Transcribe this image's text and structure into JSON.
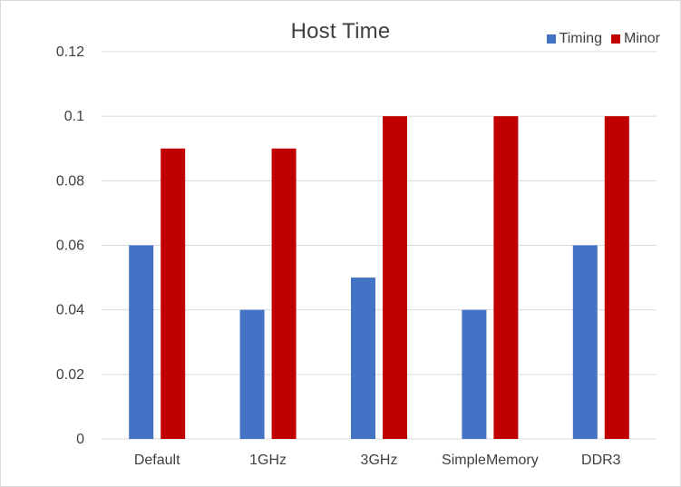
{
  "chart_data": {
    "type": "bar",
    "title": "Host Time",
    "categories": [
      "Default",
      "1GHz",
      "3GHz",
      "SimpleMemory",
      "DDR3"
    ],
    "series": [
      {
        "name": "Timing",
        "values": [
          0.06,
          0.04,
          0.05,
          0.04,
          0.06
        ],
        "color": "#4472c4"
      },
      {
        "name": "Minor",
        "values": [
          0.09,
          0.09,
          0.1,
          0.1,
          0.1
        ],
        "color": "#c00000"
      }
    ],
    "ylim": [
      0,
      0.12
    ],
    "yticks": [
      "0",
      "0.02",
      "0.04",
      "0.06",
      "0.08",
      "0.1",
      "0.12"
    ],
    "grid": true,
    "legend_position": "top-right",
    "xlabel": "",
    "ylabel": ""
  }
}
